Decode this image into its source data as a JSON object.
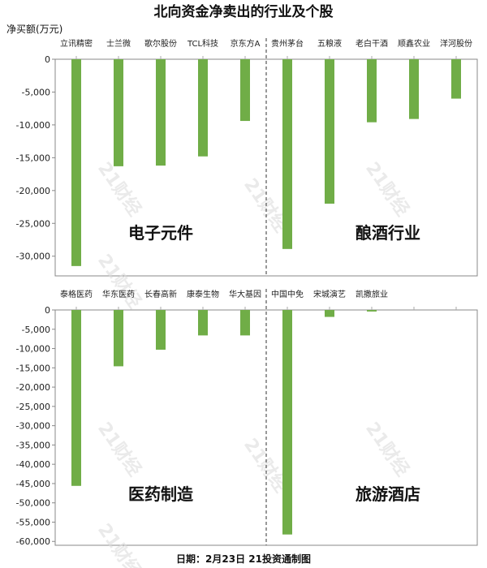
{
  "title": "北向资金净卖出的行业及个股",
  "ylabel": "净买额(万元)",
  "footer": "日期：2月23日 21投资通制图",
  "watermark": "21财经",
  "bar_color": "#70ad47",
  "chart_data": [
    {
      "type": "bar",
      "categories": [
        "立讯精密",
        "士兰微",
        "歌尔股份",
        "TCL科技",
        "京东方A",
        "贵州茅台",
        "五粮液",
        "老白干酒",
        "顺鑫农业",
        "洋河股份"
      ],
      "values": [
        -31500,
        -16300,
        -16200,
        -14800,
        -9400,
        -28900,
        -22000,
        -9600,
        -9100,
        -6000
      ],
      "groups": [
        {
          "label": "电子元件",
          "count": 5
        },
        {
          "label": "酿酒行业",
          "count": 5
        }
      ],
      "ylim": [
        -33000,
        0
      ],
      "yticks": [
        0,
        -5000,
        -10000,
        -15000,
        -20000,
        -25000,
        -30000
      ],
      "ytick_labels": [
        "0",
        "-5,000",
        "-10,000",
        "-15,000",
        "-20,000",
        "-25,000",
        "-30,000"
      ]
    },
    {
      "type": "bar",
      "categories": [
        "泰格医药",
        "华东医药",
        "长春高新",
        "康泰生物",
        "华大基因",
        "中国中免",
        "宋城演艺",
        "凯撒旅业",
        "",
        ""
      ],
      "values": [
        -45600,
        -14600,
        -10300,
        -6600,
        -6600,
        -58200,
        -1800,
        -400,
        null,
        null
      ],
      "groups": [
        {
          "label": "医药制造",
          "count": 5
        },
        {
          "label": "旅游酒店",
          "count": 5
        }
      ],
      "ylim": [
        -61000,
        0
      ],
      "yticks": [
        0,
        -5000,
        -10000,
        -15000,
        -20000,
        -25000,
        -30000,
        -35000,
        -40000,
        -45000,
        -50000,
        -55000,
        -60000
      ],
      "ytick_labels": [
        "0",
        "-5,000",
        "-10,000",
        "-15,000",
        "-20,000",
        "-25,000",
        "-30,000",
        "-35,000",
        "-40,000",
        "-45,000",
        "-50,000",
        "-55,000",
        "-60,000"
      ]
    }
  ]
}
